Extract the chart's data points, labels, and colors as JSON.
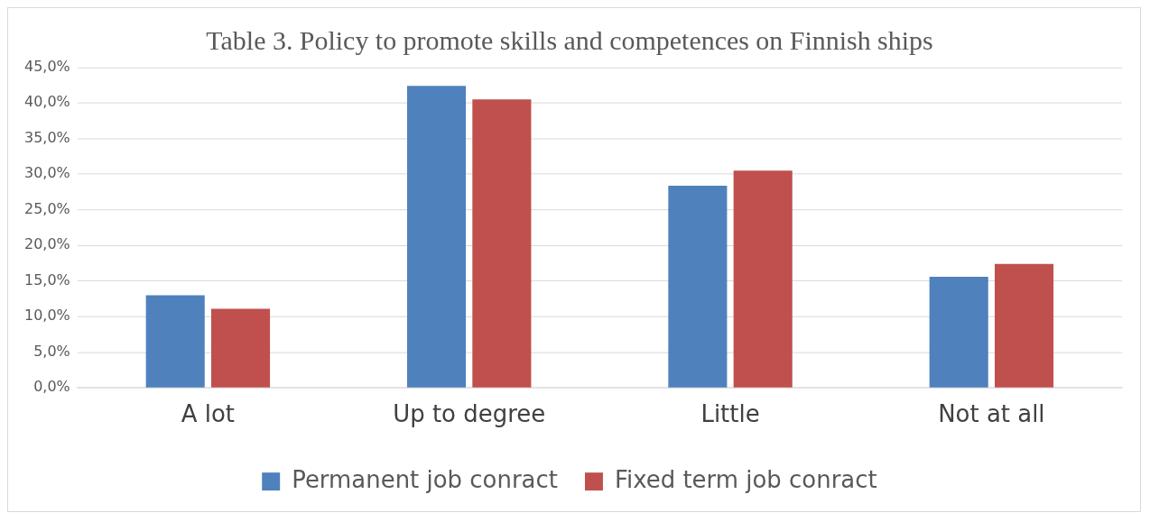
{
  "chart_data": {
    "type": "bar",
    "title": "Table 3. Policy to promote skills and competences on Finnish ships",
    "categories": [
      "A lot",
      "Up to degree",
      "Little",
      "Not at all"
    ],
    "series": [
      {
        "name": "Permanent job conract",
        "color": "#4f81bd",
        "values": [
          13.0,
          42.4,
          28.4,
          15.6
        ]
      },
      {
        "name": "Fixed term job conract",
        "color": "#c0504d",
        "values": [
          11.1,
          40.5,
          30.5,
          17.4
        ]
      }
    ],
    "ylim": [
      0,
      45
    ],
    "yticks": [
      {
        "value": 0,
        "label": "0,0%"
      },
      {
        "value": 5,
        "label": "5,0%"
      },
      {
        "value": 10,
        "label": "10,0%"
      },
      {
        "value": 15,
        "label": "15,0%"
      },
      {
        "value": 20,
        "label": "20,0%"
      },
      {
        "value": 25,
        "label": "25,0%"
      },
      {
        "value": 30,
        "label": "30,0%"
      },
      {
        "value": 35,
        "label": "35,0%"
      },
      {
        "value": 40,
        "label": "40,0%"
      },
      {
        "value": 45,
        "label": "45,0%"
      }
    ],
    "grid": "y",
    "legend": "bottom"
  }
}
